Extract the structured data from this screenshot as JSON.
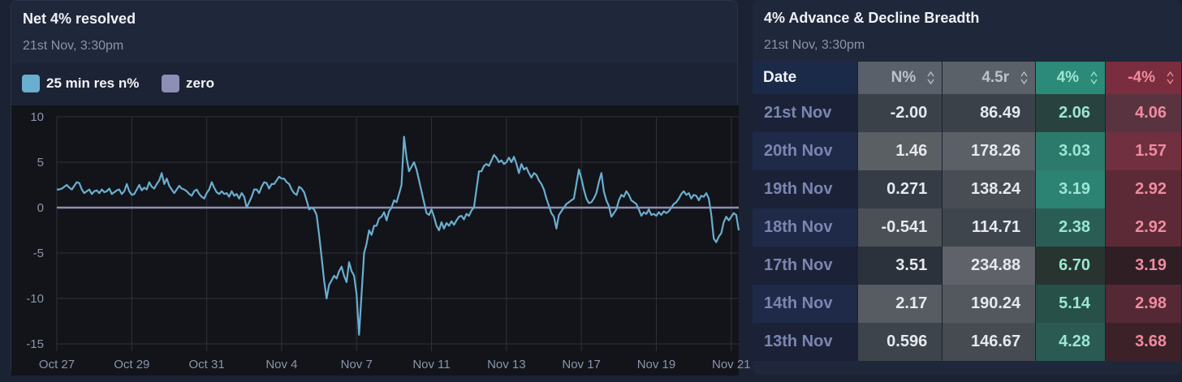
{
  "left_panel": {
    "title": "Net 4% resolved",
    "subtitle": "21st Nov, 3:30pm",
    "legend": [
      {
        "label": "25 min res n%",
        "color": "#6aaed0"
      },
      {
        "label": "zero",
        "color": "#8d8fb6"
      }
    ]
  },
  "right_panel": {
    "title": "4% Advance & Decline Breadth",
    "subtitle": "21st Nov, 3:30pm",
    "headers": [
      "Date",
      "N%",
      "4.5r",
      "4%",
      "-4%"
    ],
    "rows": [
      {
        "date": "21st Nov",
        "n": "-2.00",
        "r": "86.49",
        "adv": "2.06",
        "dec": "4.06"
      },
      {
        "date": "20th Nov",
        "n": "1.46",
        "r": "178.26",
        "adv": "3.03",
        "dec": "1.57"
      },
      {
        "date": "19th Nov",
        "n": "0.271",
        "r": "138.24",
        "adv": "3.19",
        "dec": "2.92"
      },
      {
        "date": "18th Nov",
        "n": "-0.541",
        "r": "114.71",
        "adv": "2.38",
        "dec": "2.92"
      },
      {
        "date": "17th Nov",
        "n": "3.51",
        "r": "234.88",
        "adv": "6.70",
        "dec": "3.19"
      },
      {
        "date": "14th Nov",
        "n": "2.17",
        "r": "190.24",
        "adv": "5.14",
        "dec": "2.98"
      },
      {
        "date": "13th Nov",
        "n": "0.596",
        "r": "146.67",
        "adv": "4.28",
        "dec": "3.68"
      }
    ]
  },
  "chart_data": {
    "type": "line",
    "title": "Net 4% resolved",
    "ylim": [
      -15,
      10
    ],
    "yticks": [
      10,
      5,
      0,
      -5,
      -10,
      -15
    ],
    "x_tick_labels": [
      "Oct 27",
      "Oct 29",
      "Oct 31",
      "Nov 4",
      "Nov 7",
      "Nov 11",
      "Nov 13",
      "Nov 17",
      "Nov 19",
      "Nov 21"
    ],
    "x_tick_index": [
      0,
      30,
      60,
      90,
      120,
      150,
      180,
      210,
      240,
      270
    ],
    "grid": true,
    "series": [
      {
        "name": "25 min res n%",
        "color": "#6aaed0",
        "values": [
          2.0,
          2.0,
          2.1,
          2.3,
          2.5,
          2.2,
          2.0,
          2.4,
          2.8,
          2.7,
          2.0,
          1.6,
          1.8,
          2.0,
          1.5,
          1.8,
          1.9,
          1.6,
          2.0,
          1.7,
          1.8,
          2.1,
          1.5,
          1.7,
          1.9,
          2.0,
          1.5,
          1.8,
          2.6,
          1.8,
          1.4,
          1.5,
          2.0,
          2.5,
          1.9,
          2.2,
          2.0,
          2.8,
          2.3,
          2.1,
          2.6,
          3.0,
          3.8,
          2.6,
          3.2,
          2.4,
          2.0,
          1.6,
          2.0,
          2.4,
          2.1,
          2.0,
          1.8,
          1.5,
          1.3,
          1.8,
          2.0,
          1.5,
          1.2,
          1.0,
          1.6,
          2.0,
          2.8,
          2.2,
          1.7,
          1.5,
          1.8,
          1.5,
          1.6,
          1.2,
          1.8,
          1.3,
          1.5,
          1.0,
          1.6,
          1.2,
          0.0,
          0.6,
          1.2,
          2.0,
          2.0,
          1.6,
          2.3,
          2.8,
          2.7,
          2.1,
          2.6,
          2.6,
          3.0,
          3.4,
          3.2,
          3.2,
          2.8,
          2.6,
          2.0,
          1.6,
          1.4,
          2.3,
          2.1,
          1.7,
          0.8,
          -0.2,
          0.0,
          -0.2,
          -0.8,
          -3.0,
          -5.5,
          -8.0,
          -10.0,
          -8.5,
          -8.0,
          -7.5,
          -7.8,
          -7.0,
          -6.5,
          -7.5,
          -8.2,
          -6.0,
          -7.0,
          -7.5,
          -9.5,
          -14.0,
          -9.5,
          -5.0,
          -4.0,
          -2.5,
          -3.0,
          -2.0,
          -2.0,
          -1.2,
          -1.0,
          -0.5,
          -1.4,
          -0.4,
          0.0,
          0.8,
          0.6,
          1.5,
          2.5,
          7.8,
          5.5,
          4.0,
          4.5,
          5.0,
          4.2,
          3.0,
          1.8,
          0.6,
          -0.6,
          -0.8,
          -0.2,
          -1.0,
          -2.0,
          -2.5,
          -1.6,
          -2.3,
          -1.7,
          -2.0,
          -1.5,
          -1.9,
          -1.4,
          -1.0,
          -0.9,
          -1.3,
          -0.7,
          -0.9,
          -0.3,
          0.0,
          2.0,
          4.0,
          4.0,
          4.6,
          4.8,
          4.6,
          5.2,
          5.8,
          5.5,
          5.0,
          5.2,
          4.8,
          5.0,
          5.5,
          5.0,
          5.6,
          4.8,
          3.8,
          4.8,
          4.2,
          4.4,
          3.8,
          3.3,
          3.8,
          3.6,
          3.0,
          2.6,
          2.0,
          1.0,
          0.2,
          -0.6,
          -1.0,
          -2.3,
          -0.8,
          -0.4,
          0.0,
          0.4,
          0.6,
          0.8,
          1.0,
          2.6,
          4.2,
          3.2,
          2.0,
          1.0,
          0.5,
          0.6,
          1.0,
          1.6,
          2.8,
          3.8,
          1.8,
          0.8,
          0.2,
          -1.0,
          -0.6,
          -0.2,
          0.8,
          1.4,
          1.2,
          1.8,
          1.4,
          0.8,
          0.6,
          0.4,
          -0.2,
          -0.9,
          -0.5,
          -0.7,
          -0.2,
          -0.8,
          -0.7,
          -0.9,
          -0.5,
          -0.8,
          -0.4,
          -0.6,
          -0.4,
          0.0,
          0.4,
          0.6,
          1.0,
          1.5,
          1.8,
          1.4,
          1.6,
          1.0,
          1.4,
          1.3,
          0.8,
          1.3,
          1.2,
          1.6,
          1.0,
          -0.8,
          -3.4,
          -3.8,
          -3.2,
          -2.8,
          -1.6,
          -1.0,
          -1.4,
          -1.0,
          -0.6,
          -0.8,
          -2.5
        ]
      },
      {
        "name": "zero",
        "color": "#8d8fb6",
        "values": [
          0,
          0
        ]
      }
    ]
  }
}
